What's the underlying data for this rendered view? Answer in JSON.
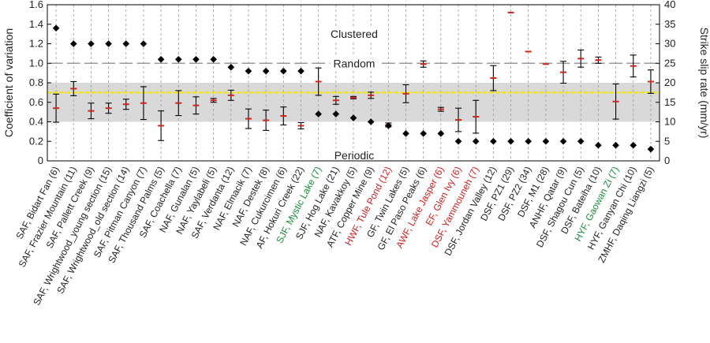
{
  "chart_data": {
    "type": "scatter",
    "ylabel_left": "Coefficient of variation",
    "ylabel_right": "Strike slip rate (mm/yr)",
    "ylim_left": [
      0,
      1.6
    ],
    "ylim_right": [
      0,
      40
    ],
    "yticks_left": [
      "0",
      "0.2",
      "0.4",
      "0.6",
      "0.8",
      "1.0",
      "1.2",
      "1.4",
      "1.6"
    ],
    "yticks_right": [
      "0",
      "5",
      "10",
      "15",
      "20",
      "25",
      "30",
      "35",
      "40"
    ],
    "annotations": {
      "clustered": "Clustered",
      "random": "Random",
      "periodic": "Periodic"
    },
    "bands": {
      "periodic_band": [
        0.4,
        0.8
      ],
      "yellow_line": 0.7,
      "random_level": 1.0
    },
    "colors": {
      "cv_marker": "#000000",
      "slip_rate": "#d0251c",
      "label_default": "#222222",
      "label_green": "#1a8a3a",
      "label_red": "#cc1f1f",
      "band": "#d9d9d9",
      "yellow": "#f2e600"
    },
    "categories": [
      {
        "label": "SAF, Bidart Fan (6)",
        "color": "default",
        "cv": 1.36,
        "slip": 13.5,
        "slip_err": 3.6
      },
      {
        "label": "SAF, Frazier Mountain (11)",
        "color": "default",
        "cv": 1.2,
        "slip": 18.5,
        "slip_err": 1.8
      },
      {
        "label": "SAF, Pallett Creek (9)",
        "color": "default",
        "cv": 1.2,
        "slip": 12.8,
        "slip_err": 2.0
      },
      {
        "label": "SAF, Wrightwood_young section (15)",
        "color": "default",
        "cv": 1.2,
        "slip": 13.5,
        "slip_err": 1.3
      },
      {
        "label": "SAF, Wrightwood_old section (14)",
        "color": "default",
        "cv": 1.2,
        "slip": 14.5,
        "slip_err": 1.3
      },
      {
        "label": "SAF, Pitman Canyon (7)",
        "color": "default",
        "cv": 1.2,
        "slip": 14.8,
        "slip_err": 4.2
      },
      {
        "label": "SAF, Thousand Palms (5)",
        "color": "default",
        "cv": 1.04,
        "slip": 9.0,
        "slip_err": 3.8
      },
      {
        "label": "SAF, Coachella (7)",
        "color": "default",
        "cv": 1.04,
        "slip": 14.8,
        "slip_err": 3.2
      },
      {
        "label": "NAF, Gunalan (5)",
        "color": "default",
        "cv": 1.04,
        "slip": 14.2,
        "slip_err": 2.2
      },
      {
        "label": "NAF, Yaylabeli (5)",
        "color": "default",
        "cv": 1.04,
        "slip": 15.5,
        "slip_err": 0.5
      },
      {
        "label": "SAF, Verdanta (12)",
        "color": "default",
        "cv": 0.96,
        "slip": 16.8,
        "slip_err": 1.3
      },
      {
        "label": "NAF, Elmacik (7)",
        "color": "default",
        "cv": 0.92,
        "slip": 10.8,
        "slip_err": 2.5
      },
      {
        "label": "NAF, Destek (8)",
        "color": "default",
        "cv": 0.92,
        "slip": 10.4,
        "slip_err": 2.6
      },
      {
        "label": "NAF, Cukurcimen (6)",
        "color": "default",
        "cv": 0.92,
        "slip": 11.5,
        "slip_err": 2.3
      },
      {
        "label": "AF, Hokuri Creek (22)",
        "color": "default",
        "cv": 0.92,
        "slip": 9.0,
        "slip_err": 0.8
      },
      {
        "label": "SJF, Mystic Lake (7)",
        "color": "green",
        "cv": 0.48,
        "slip": 20.3,
        "slip_err": 3.5
      },
      {
        "label": "SJF, Hog Lake (21)",
        "color": "default",
        "cv": 0.48,
        "slip": 15.5,
        "slip_err": 1.0
      },
      {
        "label": "NAF, Kavakkoy (5)",
        "color": "default",
        "cv": 0.44,
        "slip": 16.2,
        "slip_err": 0.3
      },
      {
        "label": "ATF, Copper Mine (9)",
        "color": "default",
        "cv": 0.4,
        "slip": 16.8,
        "slip_err": 0.8
      },
      {
        "label": "HWF, Tule Pond (12)",
        "color": "red",
        "cv": 0.36,
        "slip": 9.2,
        "slip_err": 0.5
      },
      {
        "label": "GF, Twin Lakes (5)",
        "color": "default",
        "cv": 0.28,
        "slip": 17.2,
        "slip_err": 2.3
      },
      {
        "label": "GF, El Paso Peaks (6)",
        "color": "default",
        "cv": 0.28,
        "slip": 24.8,
        "slip_err": 0.8
      },
      {
        "label": "AWF, Lake Jasper (6)",
        "color": "red",
        "cv": 0.28,
        "slip": 13.2,
        "slip_err": 0.5
      },
      {
        "label": "EF, Glen Ivy (6)",
        "color": "red",
        "cv": 0.2,
        "slip": 10.5,
        "slip_err": 3.0
      },
      {
        "label": "DSF, Yammouneh (7)",
        "color": "red",
        "cv": 0.2,
        "slip": 11.3,
        "slip_err": 4.2
      },
      {
        "label": "DSF, Jordan Valley (12)",
        "color": "default",
        "cv": 0.2,
        "slip": 21.2,
        "slip_err": 3.2
      },
      {
        "label": "DSF, PZ1 (29)",
        "color": "default",
        "cv": 0.2,
        "slip": 38.0,
        "slip_err": 0
      },
      {
        "label": "DSF, PZ2 (34)",
        "color": "default",
        "cv": 0.2,
        "slip": 28.0,
        "slip_err": 0
      },
      {
        "label": "DSF, M1 (28)",
        "color": "default",
        "cv": 0.2,
        "slip": 24.8,
        "slip_err": 0
      },
      {
        "label": "ANHF, Qatar (9)",
        "color": "default",
        "cv": 0.2,
        "slip": 22.7,
        "slip_err": 2.8
      },
      {
        "label": "DSF, Shagou Cun (5)",
        "color": "default",
        "cv": 0.2,
        "slip": 26.2,
        "slip_err": 2.2
      },
      {
        "label": "DSF, Bateiha (10)",
        "color": "default",
        "cv": 0.16,
        "slip": 25.8,
        "slip_err": 0.8
      },
      {
        "label": "HYF, Gaowan Zi (7)",
        "color": "green",
        "cv": 0.16,
        "slip": 15.2,
        "slip_err": 4.5
      },
      {
        "label": "HYF, Ganyan Chi (10)",
        "color": "default",
        "cv": 0.16,
        "slip": 24.3,
        "slip_err": 2.8
      },
      {
        "label": "ZMHF, Daqing Liangzi (5)",
        "color": "default",
        "cv": 0.12,
        "slip": 20.3,
        "slip_err": 3.0
      }
    ]
  }
}
